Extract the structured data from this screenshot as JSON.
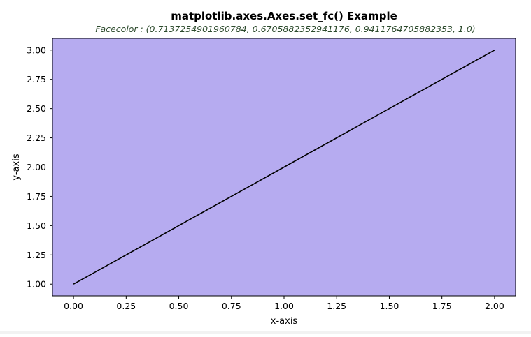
{
  "chart_data": {
    "type": "line",
    "title": "matplotlib.axes.Axes.set_fc() Example",
    "subtitle": "Facecolor : (0.7137254901960784, 0.6705882352941176, 0.9411764705882353, 1.0)",
    "xlabel": "x-axis",
    "ylabel": "y-axis",
    "xlim": [
      -0.1,
      2.1
    ],
    "ylim": [
      0.9,
      3.1
    ],
    "x_ticks": [
      0.0,
      0.25,
      0.5,
      0.75,
      1.0,
      1.25,
      1.5,
      1.75,
      2.0
    ],
    "x_tick_labels": [
      "0.00",
      "0.25",
      "0.50",
      "0.75",
      "1.00",
      "1.25",
      "1.50",
      "1.75",
      "2.00"
    ],
    "y_ticks": [
      1.0,
      1.25,
      1.5,
      1.75,
      2.0,
      2.25,
      2.5,
      2.75,
      3.0
    ],
    "y_tick_labels": [
      "1.00",
      "1.25",
      "1.50",
      "1.75",
      "2.00",
      "2.25",
      "2.50",
      "2.75",
      "3.00"
    ],
    "grid": false,
    "facecolor": "#b6abf0",
    "series": [
      {
        "x": [
          0,
          1,
          2
        ],
        "y": [
          1,
          2,
          3
        ],
        "color": "#000000"
      }
    ]
  }
}
